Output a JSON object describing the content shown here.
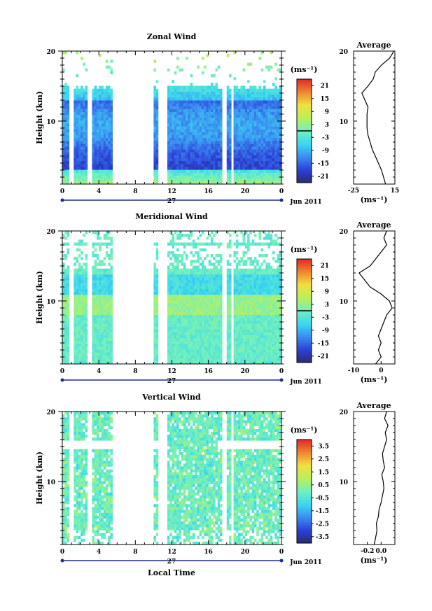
{
  "figure": {
    "x_title": "Local Time",
    "date_label": "Jun 2011",
    "day_label": "27",
    "x_ticks": [
      "0",
      "4",
      "8",
      "12",
      "16",
      "20",
      "0"
    ],
    "height_ticks": [
      "20",
      "10"
    ],
    "height_label": "Height (km)",
    "unit_label": "(ms⁻¹)",
    "average_title": "Average"
  },
  "chart_data": [
    {
      "type": "heatmap",
      "title": "Zonal Wind",
      "xlabel": "Local Time",
      "ylabel": "Height (km)",
      "xlim": [
        0,
        24
      ],
      "ylim": [
        1,
        20
      ],
      "colorbar": {
        "ticks": [
          "21",
          "15",
          "9",
          "3",
          "-3",
          "-9",
          "-15",
          "-21"
        ],
        "vmin": -24,
        "vmax": 24,
        "marker": 0
      },
      "profile": {
        "title": "Average",
        "xlabel": "(ms⁻¹)",
        "xlim": [
          -25,
          15
        ],
        "x_ticks": [
          "-25",
          "15"
        ],
        "heights": [
          1,
          2,
          3,
          4,
          5,
          6,
          7,
          8,
          9,
          10,
          11,
          12,
          13,
          14,
          15,
          16,
          17,
          18,
          19,
          20
        ],
        "values": [
          6,
          4,
          2,
          -1,
          -4,
          -7,
          -9,
          -11,
          -12,
          -12,
          -12,
          -11,
          -14,
          -17,
          -11,
          -6,
          -4,
          2,
          10,
          14
        ]
      }
    },
    {
      "type": "heatmap",
      "title": "Meridional Wind",
      "xlabel": "Local Time",
      "ylabel": "Height (km)",
      "xlim": [
        0,
        24
      ],
      "ylim": [
        1,
        20
      ],
      "colorbar": {
        "ticks": [
          "21",
          "15",
          "9",
          "3",
          "-3",
          "-9",
          "-15",
          "-21"
        ],
        "vmin": -24,
        "vmax": 24,
        "marker": 0
      },
      "profile": {
        "title": "Average",
        "xlabel": "(ms⁻¹)",
        "xlim": [
          -10,
          5
        ],
        "x_ticks": [
          "-10",
          "0"
        ],
        "heights": [
          1,
          2,
          3,
          4,
          5,
          6,
          7,
          8,
          9,
          10,
          11,
          12,
          13,
          14,
          15,
          16,
          17,
          18,
          19,
          20
        ],
        "values": [
          -2,
          0,
          -1,
          0,
          -1,
          0,
          1,
          2,
          4,
          3,
          0,
          -4,
          -6,
          -8,
          -4,
          -2,
          0,
          2,
          1,
          2
        ]
      }
    },
    {
      "type": "heatmap",
      "title": "Vertical Wind",
      "xlabel": "Local Time",
      "ylabel": "Height (km)",
      "xlim": [
        0,
        24
      ],
      "ylim": [
        1,
        20
      ],
      "colorbar": {
        "ticks": [
          "3.5",
          "2.5",
          "1.5",
          "0.5",
          "-0.5",
          "-1.5",
          "-2.5",
          "-3.5"
        ],
        "vmin": -4,
        "vmax": 4,
        "marker": null
      },
      "profile": {
        "title": "Average",
        "xlabel": "(ms⁻¹)",
        "xlim": [
          -0.4,
          0.2
        ],
        "x_ticks": [
          "-0.2",
          "0.0"
        ],
        "heights": [
          1,
          2,
          3,
          4,
          5,
          6,
          7,
          8,
          9,
          10,
          11,
          12,
          13,
          14,
          15,
          16,
          17,
          18,
          19,
          20
        ],
        "values": [
          -0.1,
          -0.08,
          -0.06,
          -0.07,
          -0.04,
          -0.03,
          0.0,
          0.02,
          0.04,
          0.03,
          0.01,
          0.05,
          0.03,
          0.02,
          0.05,
          0.08,
          0.06,
          0.1,
          0.05,
          0.08
        ]
      }
    }
  ]
}
